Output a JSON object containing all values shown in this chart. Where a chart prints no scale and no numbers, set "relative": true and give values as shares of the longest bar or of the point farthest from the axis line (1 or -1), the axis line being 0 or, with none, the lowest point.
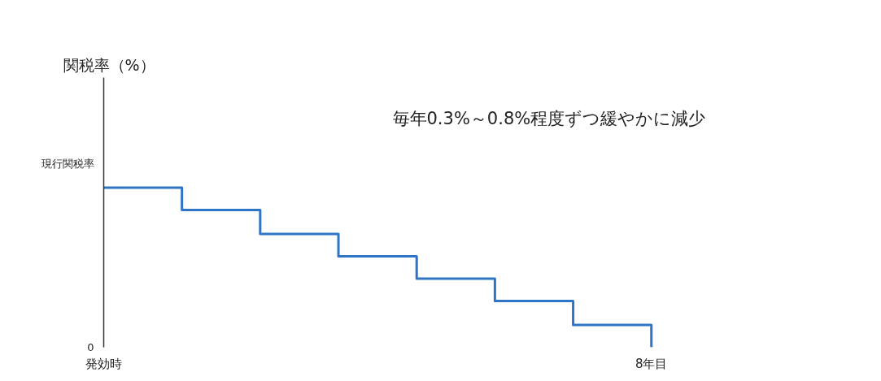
{
  "chart_data": {
    "type": "step",
    "relative": true,
    "categories": [
      "発効時",
      null,
      null,
      null,
      null,
      null,
      null,
      "8年目"
    ],
    "values": [
      1,
      0.86,
      0.71,
      0.57,
      0.43,
      0.29,
      0.14,
      0
    ],
    "color": "#2e75c8",
    "annotations": [
      "関税率（%）",
      "現行関税率",
      "0",
      "毎年0.3%～0.8%程度ずつ緩やかに減少"
    ]
  }
}
